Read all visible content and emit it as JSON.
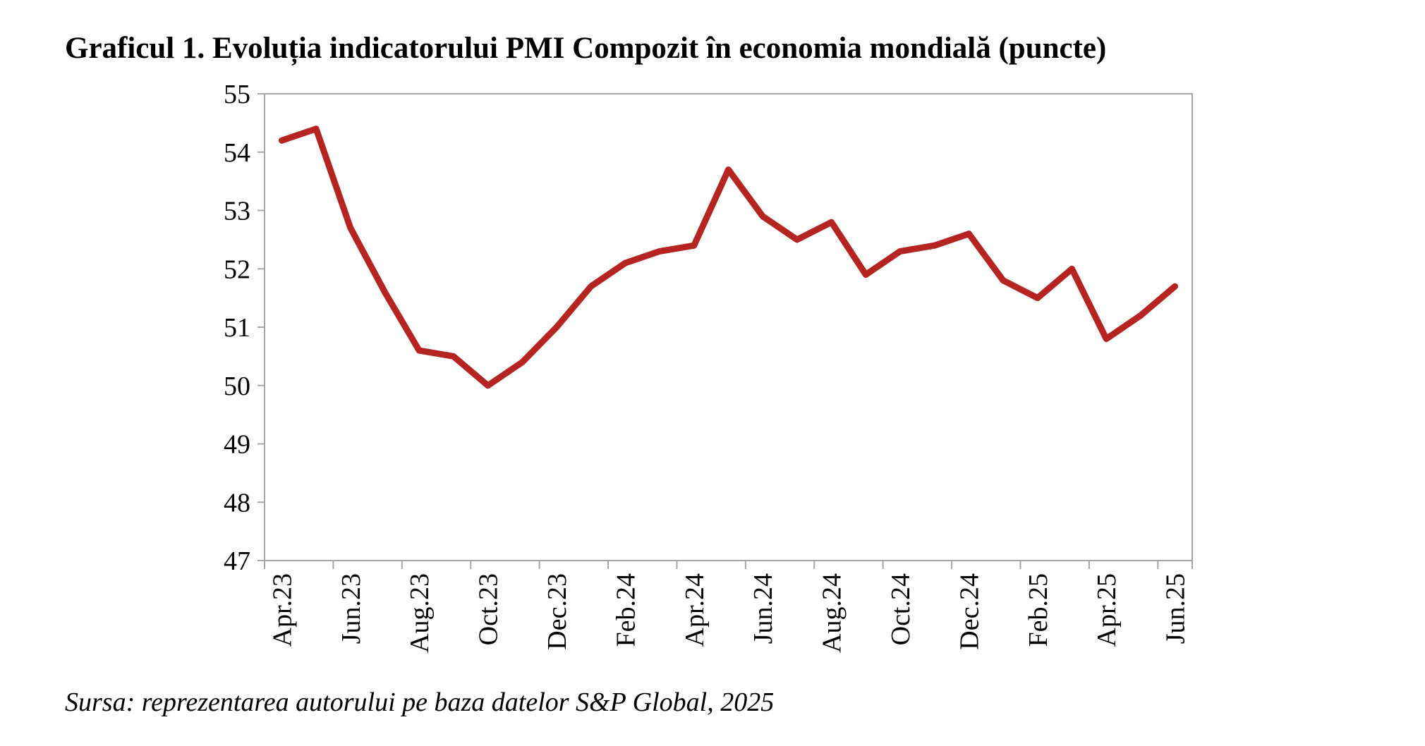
{
  "title": "Graficul 1. Evoluția indicatorului PMI Compozit în economia mondială (puncte)",
  "source": "Sursa: reprezentarea autorului pe baza datelor S&P Global, 2025",
  "colors": {
    "line": "#b52420",
    "axis": "#a6a6a6"
  },
  "chart_data": {
    "type": "line",
    "title": "Graficul 1. Evoluția indicatorului PMI Compozit în economia mondială (puncte)",
    "x": [
      "Apr.23",
      "May.23",
      "Jun.23",
      "Jul.23",
      "Aug.23",
      "Sep.23",
      "Oct.23",
      "Nov.23",
      "Dec.23",
      "Jan.24",
      "Feb.24",
      "Mar.24",
      "Apr.24",
      "May.24",
      "Jun.24",
      "Jul.24",
      "Aug.24",
      "Sep.24",
      "Oct.24",
      "Nov.24",
      "Dec.24",
      "Jan.25",
      "Feb.25",
      "Mar.25",
      "Apr.25",
      "May.25",
      "Jun.25"
    ],
    "tick_labels": [
      "Apr.23",
      "Jun.23",
      "Aug.23",
      "Oct.23",
      "Dec.23",
      "Feb.24",
      "Apr.24",
      "Jun.24",
      "Aug.24",
      "Oct.24",
      "Dec.24",
      "Feb.25",
      "Apr.25",
      "Jun.25"
    ],
    "series": [
      {
        "values": [
          54.2,
          54.4,
          52.7,
          51.6,
          50.6,
          50.5,
          50.0,
          50.4,
          51.0,
          51.7,
          52.1,
          52.3,
          52.4,
          53.7,
          52.9,
          52.5,
          52.8,
          51.9,
          52.3,
          52.4,
          52.6,
          51.8,
          51.5,
          52.0,
          50.8,
          51.2,
          51.7
        ]
      }
    ],
    "xlabel": "",
    "ylabel": "",
    "ylim": [
      47,
      55
    ],
    "yticks": [
      47,
      48,
      49,
      50,
      51,
      52,
      53,
      54,
      55
    ],
    "grid": false,
    "legend": "none"
  }
}
